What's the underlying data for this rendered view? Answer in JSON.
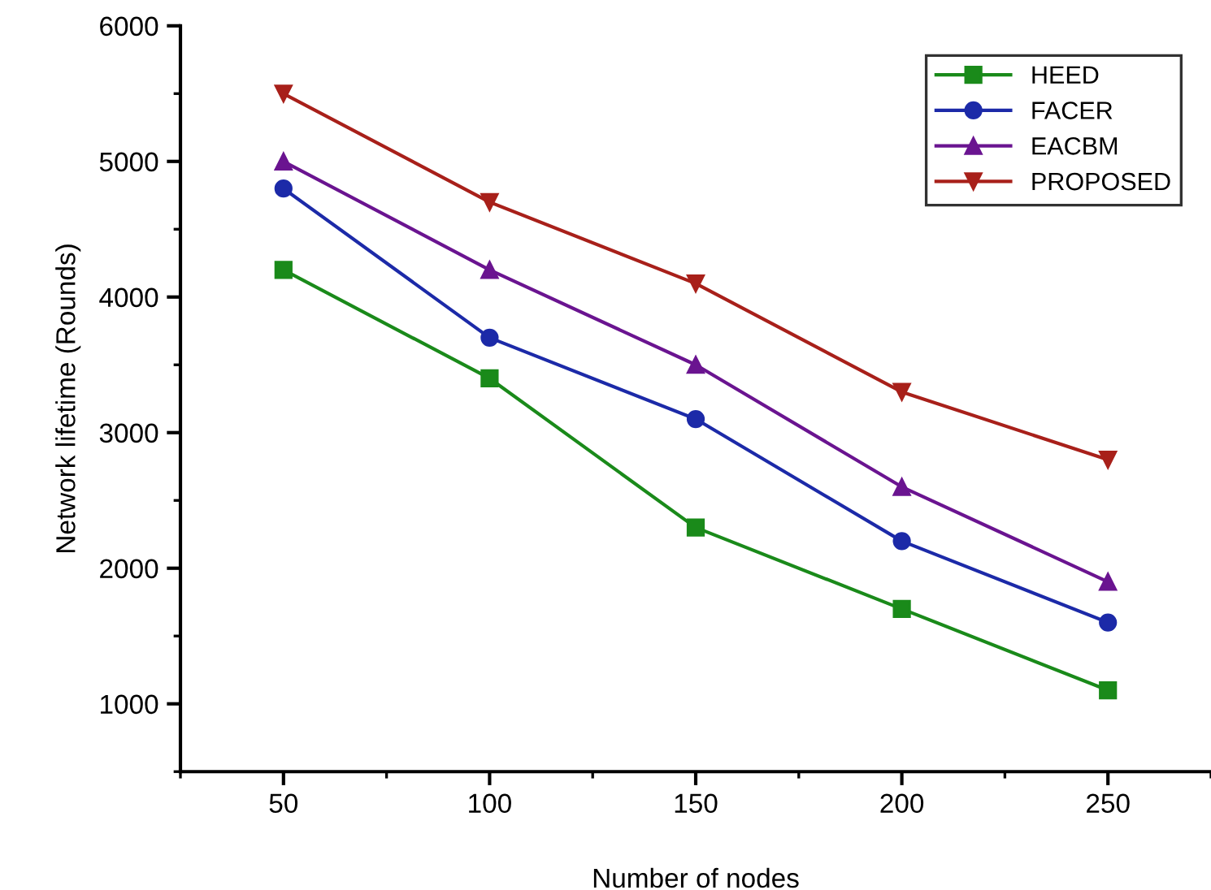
{
  "chart_data": {
    "type": "line",
    "xlabel": "Number of nodes",
    "ylabel": "Network lifetime (Rounds)",
    "x": [
      50,
      100,
      150,
      200,
      250
    ],
    "series": [
      {
        "name": "HEED",
        "color": "#1a8a1a",
        "marker": "square",
        "values": [
          4200,
          3400,
          2300,
          1700,
          1100
        ]
      },
      {
        "name": "FACER",
        "color": "#1c2aa8",
        "marker": "circle",
        "values": [
          4800,
          3700,
          3100,
          2200,
          1600
        ]
      },
      {
        "name": "EACBM",
        "color": "#6a1490",
        "marker": "triangle",
        "values": [
          5000,
          4200,
          3500,
          2600,
          1900
        ]
      },
      {
        "name": "PROPOSED",
        "color": "#a8201a",
        "marker": "triangle_down",
        "values": [
          5500,
          4700,
          4100,
          3300,
          2800
        ]
      }
    ],
    "xlim": [
      25,
      275
    ],
    "xticks": [
      50,
      100,
      150,
      200,
      250
    ],
    "ylim": [
      500,
      6000
    ],
    "yticks": [
      1000,
      2000,
      3000,
      4000,
      5000,
      6000
    ],
    "grid": false,
    "legend": "top right"
  }
}
